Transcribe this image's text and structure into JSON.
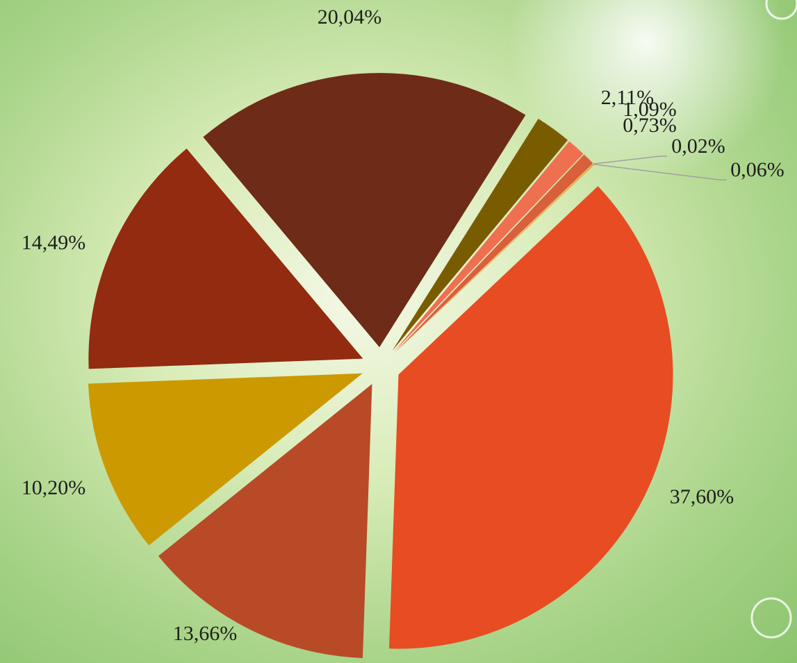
{
  "chart_data": {
    "type": "pie",
    "values": [
      37.6,
      13.66,
      10.2,
      14.49,
      20.04,
      2.11,
      1.09,
      0.73,
      0.02,
      0.06
    ],
    "value_labels": [
      "37,60%",
      "13,66%",
      "10,20%",
      "14,49%",
      "20,04%",
      "2,11%",
      "1,09%",
      "0,73%",
      "0,02%",
      "0,06%"
    ],
    "colors": [
      "#e84c22",
      "#b84a28",
      "#cc9900",
      "#922b10",
      "#6e2b18",
      "#7a5c00",
      "#ef7050",
      "#d9603a",
      "#e8b040",
      "#f0a030"
    ]
  }
}
